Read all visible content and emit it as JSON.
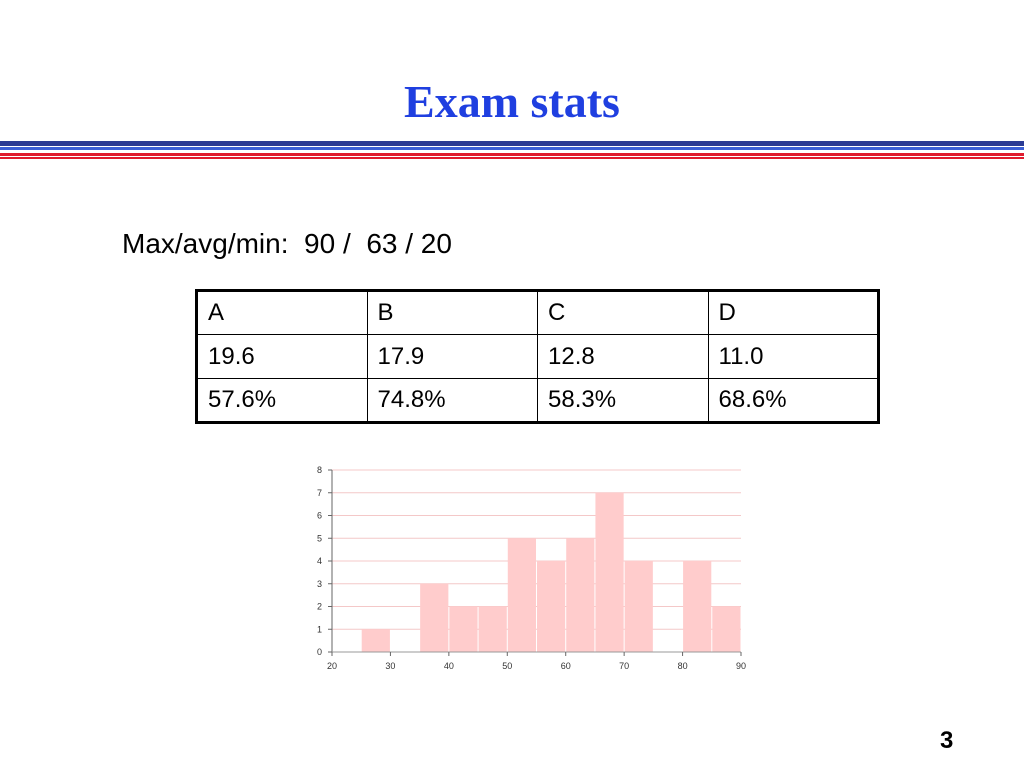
{
  "slide": {
    "title": "Exam stats",
    "stats_line": "Max/avg/min:  90 /  63 / 20",
    "page_number": "3"
  },
  "table": {
    "header": [
      "A",
      "B",
      "C",
      "D"
    ],
    "rows": [
      [
        "19.6",
        "17.9",
        "12.8",
        "11.0"
      ],
      [
        "57.6%",
        "74.8%",
        "58.3%",
        "68.6%"
      ]
    ]
  },
  "colors": {
    "title": "#1f3fe0",
    "rule_blue": "#2a3a94",
    "rule_blue_light": "#3b5fd6",
    "rule_red": "#e01b2e",
    "bar": "#ffcccc",
    "gridline": "#f4c8c8"
  },
  "chart_data": {
    "type": "bar",
    "bin_width": 5,
    "x": [
      25,
      35,
      40,
      45,
      50,
      55,
      60,
      65,
      70,
      80,
      85
    ],
    "values": [
      1,
      3,
      2,
      2,
      5,
      4,
      5,
      7,
      4,
      4,
      2
    ],
    "xlim": [
      20,
      90
    ],
    "ylim": [
      0,
      8
    ],
    "x_ticks": [
      20,
      30,
      40,
      50,
      60,
      70,
      80,
      90
    ],
    "y_ticks": [
      0,
      1,
      2,
      3,
      4,
      5,
      6,
      7,
      8
    ],
    "grid": true,
    "title": "",
    "xlabel": "",
    "ylabel": ""
  }
}
